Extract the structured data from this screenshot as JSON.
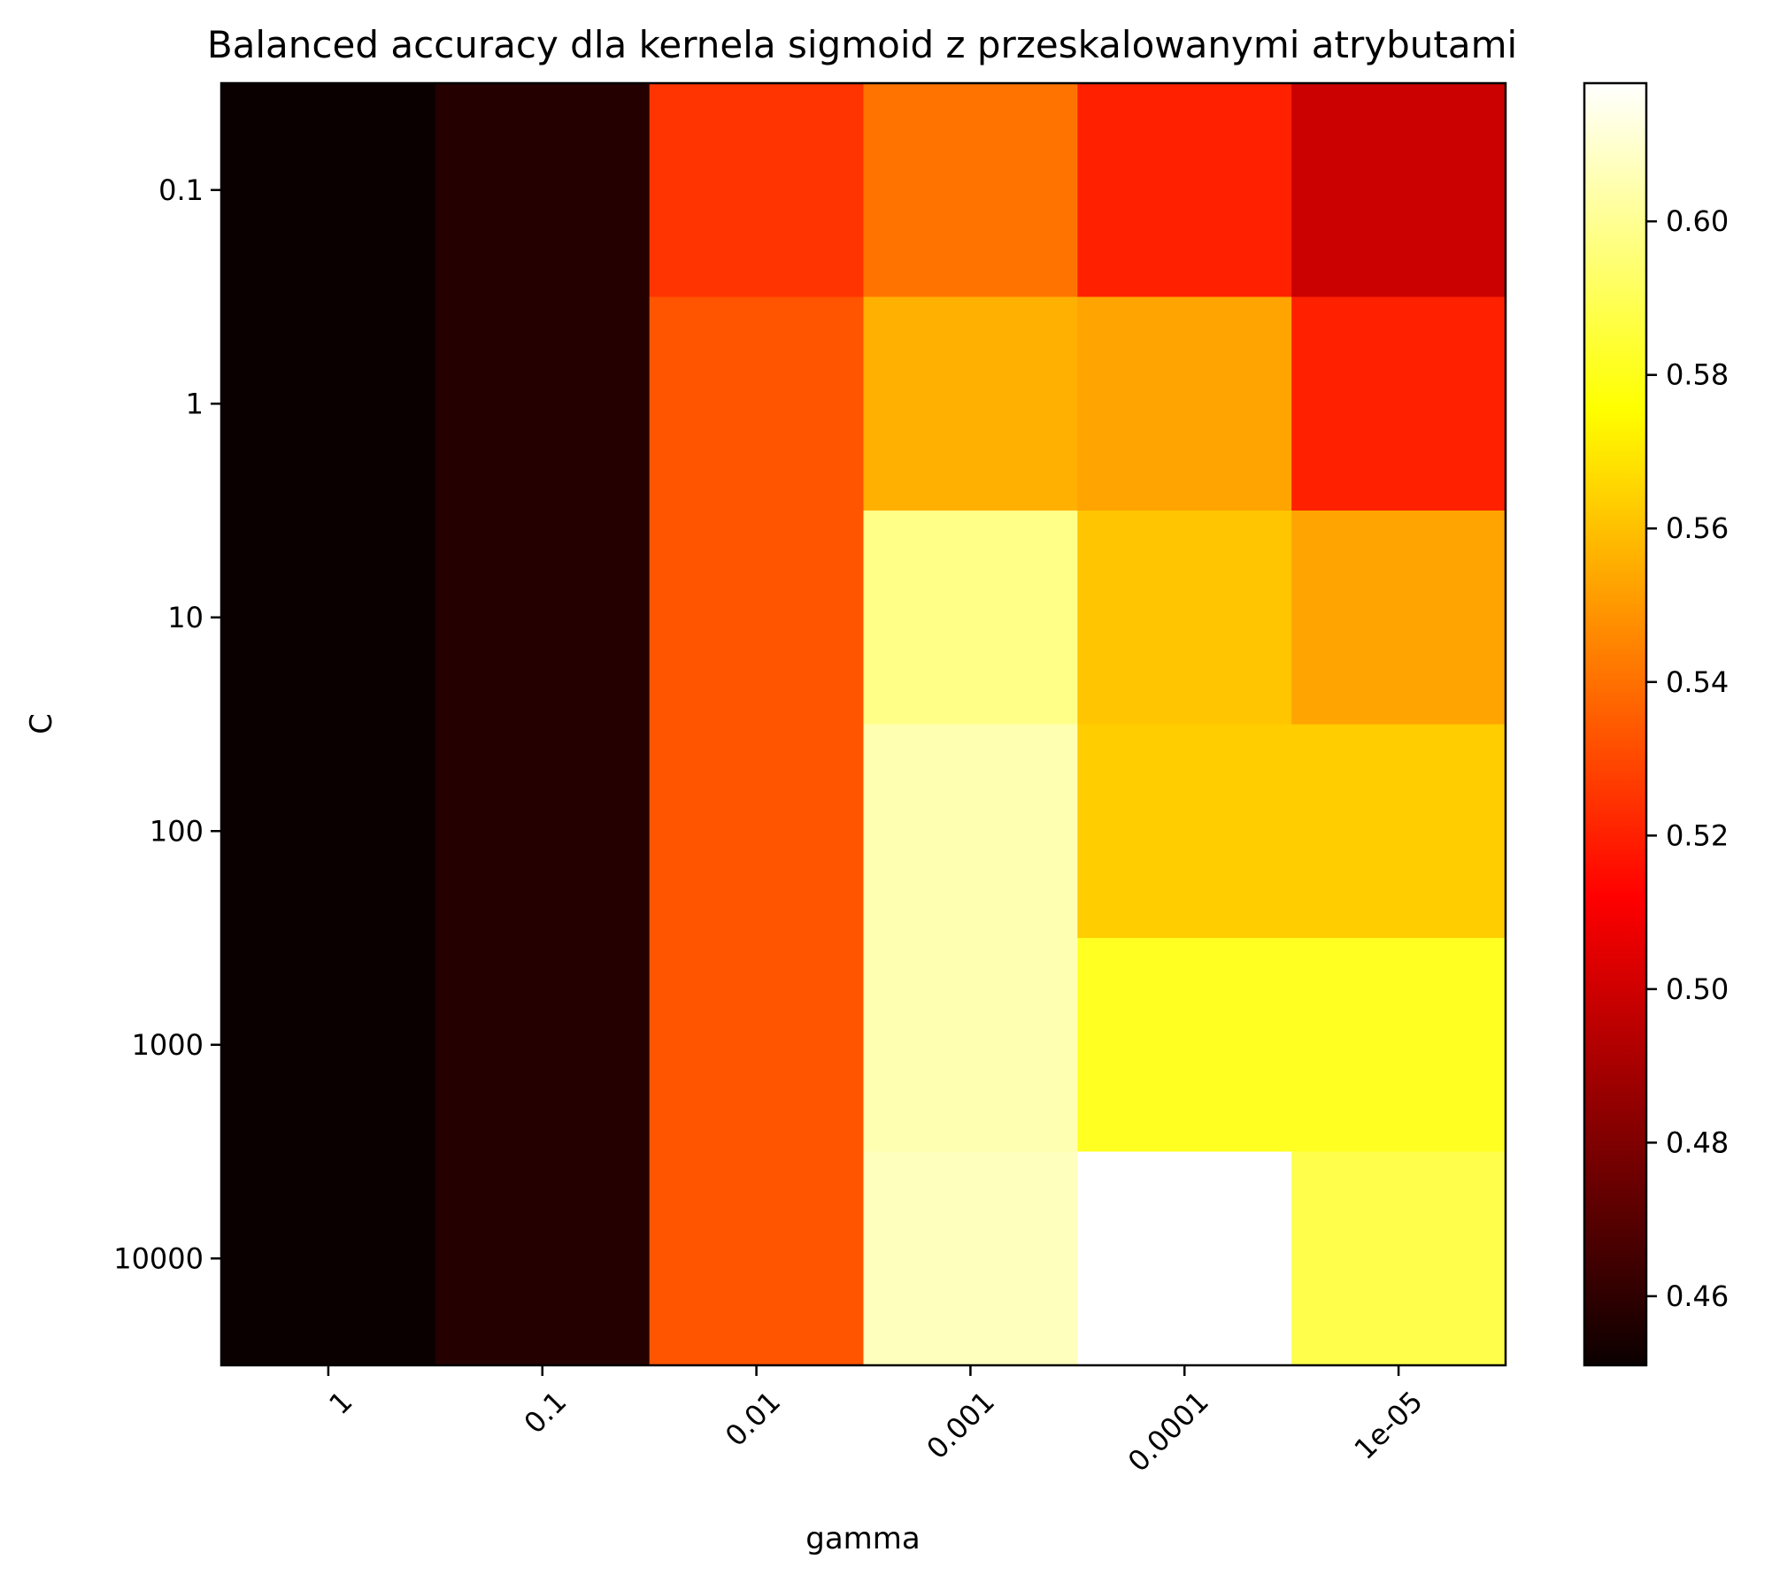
{
  "chart_data": {
    "type": "heatmap",
    "title": "Balanced accuracy dla kernela sigmoid z przeskalowanymi atrybutami",
    "xlabel": "gamma",
    "ylabel": "C",
    "x_categories": [
      "1",
      "0.1",
      "0.01",
      "0.001",
      "0.0001",
      "1e-05"
    ],
    "y_categories": [
      "0.1",
      "1",
      "10",
      "100",
      "1000",
      "10000"
    ],
    "values": [
      [
        0.451,
        0.457,
        0.525,
        0.541,
        0.52,
        0.497
      ],
      [
        0.451,
        0.457,
        0.533,
        0.556,
        0.553,
        0.52
      ],
      [
        0.451,
        0.457,
        0.533,
        0.598,
        0.561,
        0.553
      ],
      [
        0.451,
        0.457,
        0.533,
        0.605,
        0.563,
        0.563
      ],
      [
        0.451,
        0.457,
        0.533,
        0.605,
        0.581,
        0.581
      ],
      [
        0.451,
        0.457,
        0.533,
        0.607,
        0.618,
        0.588
      ]
    ],
    "colormap": "hot",
    "colorbar": {
      "vmin": 0.451,
      "vmax": 0.618,
      "ticks": [
        0.46,
        0.48,
        0.5,
        0.52,
        0.54,
        0.56,
        0.58,
        0.6
      ],
      "tick_labels": [
        "0.46",
        "0.48",
        "0.50",
        "0.52",
        "0.54",
        "0.56",
        "0.58",
        "0.60"
      ]
    },
    "grid": false
  }
}
